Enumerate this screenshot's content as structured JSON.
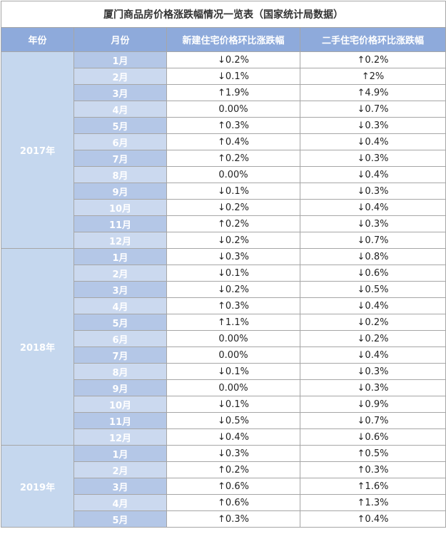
{
  "table": {
    "title": "厦门商品房价格涨跌幅情况一览表（国家统计局数据）",
    "headers": [
      "年份",
      "月份",
      "新建住宅价格环比涨跌幅",
      "二手住宅价格环比涨跌幅"
    ],
    "groups": [
      {
        "year": "2017年",
        "rows": [
          [
            "1月",
            "↓0.2%",
            "↑0.2%"
          ],
          [
            "2月",
            "↓0.1%",
            "↑2%"
          ],
          [
            "3月",
            "↑1.9%",
            "↑4.9%"
          ],
          [
            "4月",
            "0.00%",
            "↓0.7%"
          ],
          [
            "5月",
            "↑0.3%",
            "↓0.3%"
          ],
          [
            "6月",
            "↑0.4%",
            "↓0.4%"
          ],
          [
            "7月",
            "↑0.2%",
            "↓0.3%"
          ],
          [
            "8月",
            "0.00%",
            "↓0.4%"
          ],
          [
            "9月",
            "↓0.1%",
            "↓0.3%"
          ],
          [
            "10月",
            "↓0.2%",
            "↓0.4%"
          ],
          [
            "11月",
            "↑0.2%",
            "↓0.3%"
          ],
          [
            "12月",
            "↓0.2%",
            "↓0.7%"
          ]
        ]
      },
      {
        "year": "2018年",
        "rows": [
          [
            "1月",
            "↓0.3%",
            "↓0.8%"
          ],
          [
            "2月",
            "↓0.1%",
            "↓0.6%"
          ],
          [
            "3月",
            "↓0.2%",
            "↓0.5%"
          ],
          [
            "4月",
            "↑0.3%",
            "↓0.4%"
          ],
          [
            "5月",
            "↑1.1%",
            "↓0.2%"
          ],
          [
            "6月",
            "0.00%",
            "↓0.2%"
          ],
          [
            "7月",
            "0.00%",
            "↓0.4%"
          ],
          [
            "8月",
            "↓0.1%",
            "↓0.3%"
          ],
          [
            "9月",
            "0.00%",
            "↓0.3%"
          ],
          [
            "10月",
            "↓0.1%",
            "↓0.9%"
          ],
          [
            "11月",
            "↓0.5%",
            "↓0.7%"
          ],
          [
            "12月",
            "↓0.4%",
            "↓0.6%"
          ]
        ]
      },
      {
        "year": "2019年",
        "rows": [
          [
            "1月",
            "↓0.3%",
            "↑0.5%"
          ],
          [
            "2月",
            "↑0.2%",
            "↑0.3%"
          ],
          [
            "3月",
            "↑0.6%",
            "↑1.6%"
          ],
          [
            "4月",
            "↑0.6%",
            "↑1.3%"
          ],
          [
            "5月",
            "↑0.3%",
            "↑0.4%"
          ]
        ]
      }
    ]
  }
}
